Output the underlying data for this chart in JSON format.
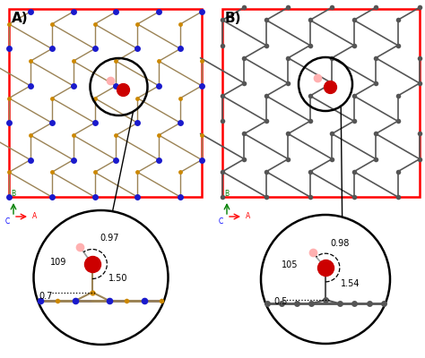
{
  "fig_width": 4.74,
  "fig_height": 4.0,
  "dpi": 100,
  "bg_color": "#ffffff",
  "panel_A_label": "A)",
  "panel_B_label": "B)",
  "N_color": "#1a1acc",
  "B_color": "#cc8800",
  "C_color": "#555555",
  "bond_BN_color": "#9B8355",
  "bond_C_color": "#555555",
  "O_color": "#cc0000",
  "H_color": "#ffb0b0",
  "border_color": "red",
  "circ_color": "black",
  "arrow_A_color": "red",
  "arrow_B_color": "green",
  "arrow_C_color": "blue",
  "label_A": "A",
  "label_B": "B",
  "label_C": "C",
  "inset_A_oh": "0.97",
  "inset_A_angle": "109",
  "inset_A_bond": "1.50",
  "inset_A_buckle": "0.7",
  "inset_B_oh": "0.98",
  "inset_B_angle": "105",
  "inset_B_bond": "1.54",
  "inset_B_buckle": "0.5"
}
